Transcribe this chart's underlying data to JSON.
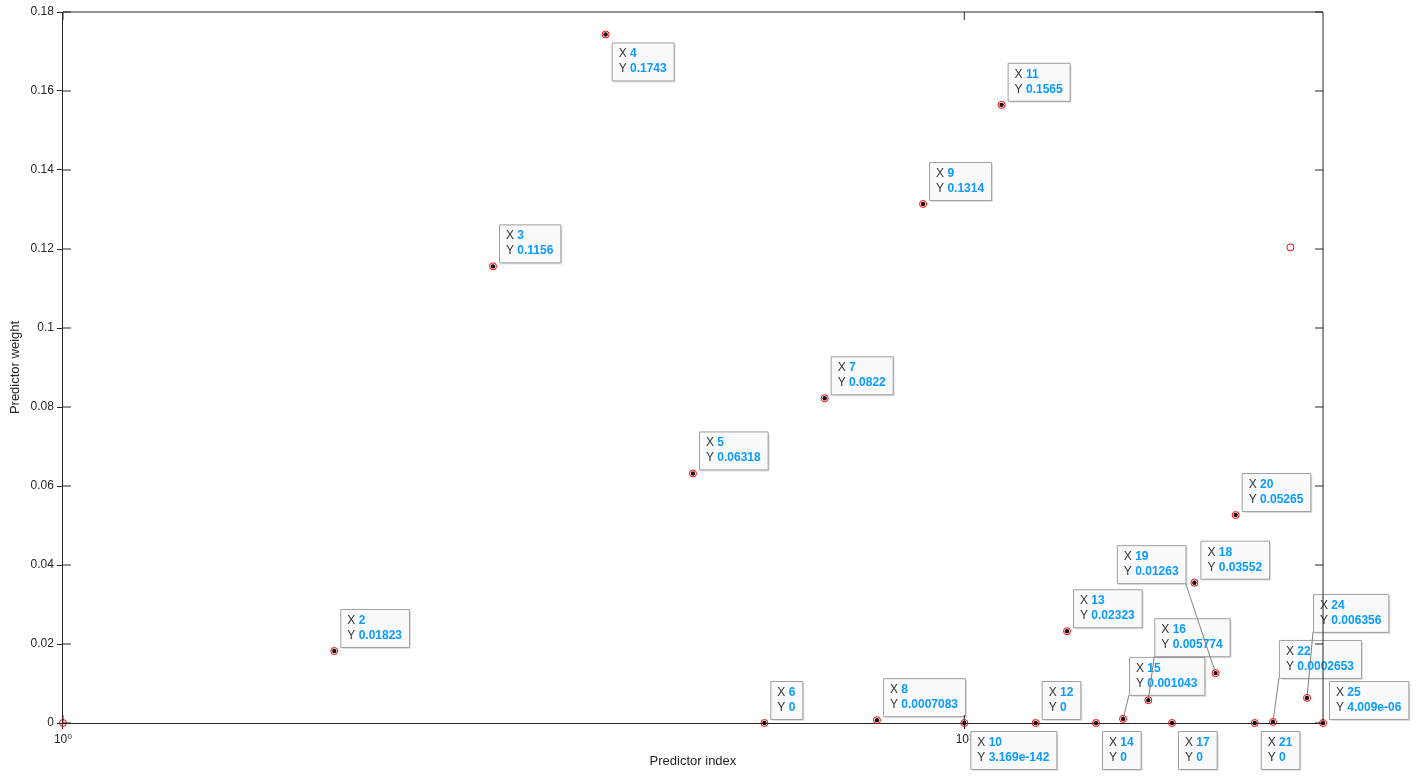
{
  "chart_data": {
    "type": "scatter",
    "xlabel": "Predictor index",
    "ylabel": "Predictor weight",
    "x": [
      1,
      2,
      3,
      4,
      5,
      6,
      7,
      8,
      9,
      10,
      11,
      12,
      13,
      14,
      15,
      16,
      17,
      18,
      19,
      20,
      21,
      22,
      23,
      24,
      25
    ],
    "values": [
      0,
      0.01823,
      0.1156,
      0.1743,
      0.06318,
      0,
      0.0822,
      0.0007083,
      0.1314,
      3.169e-142,
      0.1565,
      0,
      0.02323,
      0,
      0.001043,
      0.005774,
      0,
      0.03552,
      0.01263,
      0.05265,
      0,
      0.0002653,
      0.1204,
      0.006356,
      4.009e-06
    ],
    "color": "#ff0000",
    "marker": "circle",
    "log": "x",
    "grid": false,
    "legend": false,
    "xlim": [
      1,
      25
    ],
    "xticks": [
      {
        "value": 1,
        "label": "10⁰"
      },
      {
        "value": 10,
        "label": "10¹"
      }
    ],
    "ylim": [
      0,
      0.18
    ],
    "yticks": [
      0,
      0.02,
      0.04,
      0.06,
      0.08,
      0.1,
      0.12,
      0.14,
      0.16,
      0.18
    ],
    "annotations": [
      {
        "text": "X 2\nY 0.01823",
        "x": 2,
        "y": 0.01823
      },
      {
        "text": "X 3\nY 0.1156",
        "x": 3,
        "y": 0.1156
      },
      {
        "text": "X 4\nY 0.1743",
        "x": 4,
        "y": 0.1743
      },
      {
        "text": "X 5\nY 0.06318",
        "x": 5,
        "y": 0.06318
      },
      {
        "text": "X 6\nY 0",
        "x": 6,
        "y": 0
      },
      {
        "text": "X 7\nY 0.0822",
        "x": 7,
        "y": 0.0822
      },
      {
        "text": "X 8\nY 0.0007083",
        "x": 8,
        "y": 0.0007083
      },
      {
        "text": "X 9\nY 0.1314",
        "x": 9,
        "y": 0.1314
      },
      {
        "text": "X 10\nY 3.169e-142",
        "x": 10,
        "y": 3.169e-142
      },
      {
        "text": "X 11\nY 0.1565",
        "x": 11,
        "y": 0.1565
      },
      {
        "text": "X 12\nY 0",
        "x": 12,
        "y": 0
      },
      {
        "text": "X 13\nY 0.02323",
        "x": 13,
        "y": 0.02323
      },
      {
        "text": "X 14\nY 0",
        "x": 14,
        "y": 0
      },
      {
        "text": "X 15\nY 0.001043",
        "x": 15,
        "y": 0.001043
      },
      {
        "text": "X 16\nY 0.005774",
        "x": 16,
        "y": 0.005774
      },
      {
        "text": "X 17\nY 0",
        "x": 17,
        "y": 0
      },
      {
        "text": "X 18\nY 0.03552",
        "x": 18,
        "y": 0.03552
      },
      {
        "text": "X 19\nY 0.01263",
        "x": 19,
        "y": 0.01263
      },
      {
        "text": "X 20\nY 0.05265",
        "x": 20,
        "y": 0.05265
      },
      {
        "text": "X 21\nY 0",
        "x": 21,
        "y": 0
      },
      {
        "text": "X 22\nY 0.0002653",
        "x": 22,
        "y": 0.0002653
      },
      {
        "text": "X 24\nY 0.006356",
        "x": 24,
        "y": 0.006356
      },
      {
        "text": "X 25\nY 4.009e-06",
        "x": 25,
        "y": 4.009e-06
      }
    ]
  }
}
